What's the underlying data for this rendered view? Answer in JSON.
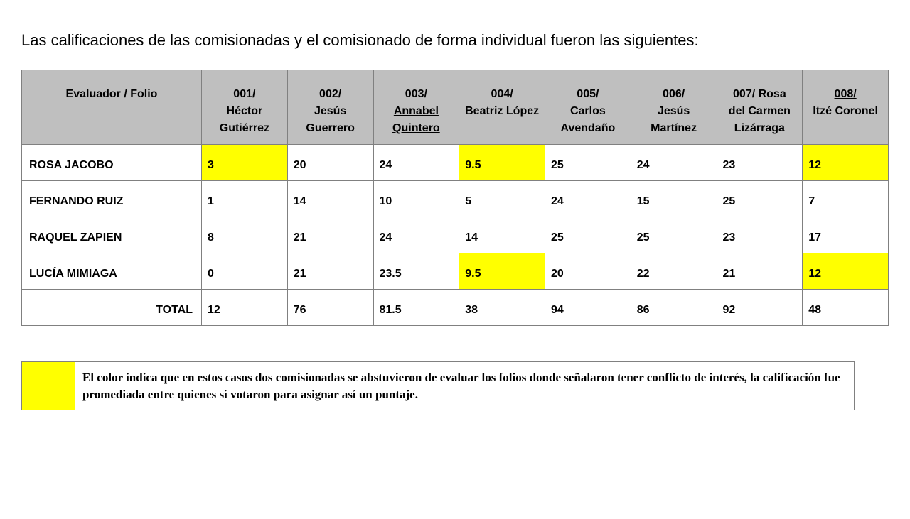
{
  "intro": "Las calificaciones de las comisionadas y el comisionado de forma individual fueron las siguientes:",
  "table": {
    "header_label": "Evaluador / Folio",
    "columns": [
      {
        "code": "001/",
        "name": "Héctor Gutiérrez",
        "underline": false
      },
      {
        "code": "002/",
        "name": "Jesús Guerrero",
        "underline": false
      },
      {
        "code": "003/",
        "name": "Annabel Quintero",
        "underline": true
      },
      {
        "code": "004/",
        "name": "Beatriz López",
        "underline": false
      },
      {
        "code": "005/",
        "name": "Carlos Avendaño",
        "underline": false
      },
      {
        "code": "006/",
        "name": "Jesús Martínez",
        "underline": false
      },
      {
        "code": "007/ Rosa",
        "name": "del Carmen Lizárraga",
        "underline": false
      },
      {
        "code": "008/",
        "name": "Itzé Coronel",
        "underline_code": true
      }
    ],
    "rows": [
      {
        "label": "ROSA JACOBO",
        "cells": [
          {
            "v": "3",
            "hl": true
          },
          {
            "v": "20",
            "hl": false
          },
          {
            "v": "24",
            "hl": false
          },
          {
            "v": "9.5",
            "hl": true
          },
          {
            "v": "25",
            "hl": false
          },
          {
            "v": "24",
            "hl": false
          },
          {
            "v": "23",
            "hl": false
          },
          {
            "v": "12",
            "hl": true
          }
        ]
      },
      {
        "label": "FERNANDO RUIZ",
        "cells": [
          {
            "v": "1",
            "hl": false
          },
          {
            "v": "14",
            "hl": false
          },
          {
            "v": "10",
            "hl": false
          },
          {
            "v": "5",
            "hl": false
          },
          {
            "v": "24",
            "hl": false
          },
          {
            "v": "15",
            "hl": false
          },
          {
            "v": "25",
            "hl": false
          },
          {
            "v": "7",
            "hl": false
          }
        ]
      },
      {
        "label": "RAQUEL ZAPIEN",
        "cells": [
          {
            "v": "8",
            "hl": false
          },
          {
            "v": "21",
            "hl": false
          },
          {
            "v": "24",
            "hl": false
          },
          {
            "v": "14",
            "hl": false
          },
          {
            "v": "25",
            "hl": false
          },
          {
            "v": "25",
            "hl": false
          },
          {
            "v": "23",
            "hl": false
          },
          {
            "v": "17",
            "hl": false
          }
        ]
      },
      {
        "label": "LUCÍA MIMIAGA",
        "cells": [
          {
            "v": "0",
            "hl": false
          },
          {
            "v": "21",
            "hl": false
          },
          {
            "v": "23.5",
            "hl": false
          },
          {
            "v": "9.5",
            "hl": true
          },
          {
            "v": "20",
            "hl": false
          },
          {
            "v": "22",
            "hl": false
          },
          {
            "v": "21",
            "hl": false
          },
          {
            "v": "12",
            "hl": true
          }
        ]
      }
    ],
    "total": {
      "label": "TOTAL",
      "cells": [
        "12",
        "76",
        "81.5",
        "38",
        "94",
        "86",
        "92",
        "48"
      ]
    }
  },
  "legend": {
    "swatch_color": "#ffff00",
    "text": "El color indica que en estos casos dos comisionadas se abstuvieron de evaluar los folios donde señalaron tener conflicto de interés, la calificación fue promediada entre quienes sí votaron para asignar así un puntaje."
  },
  "style": {
    "header_bg": "#bfbfbf",
    "highlight_bg": "#ffff00",
    "border_color": "#808080",
    "page_bg": "#ffffff",
    "text_color": "#000000"
  }
}
